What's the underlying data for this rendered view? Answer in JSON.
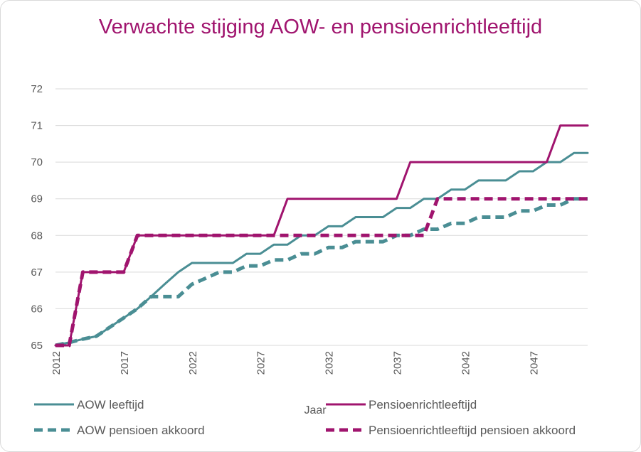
{
  "chart_data": {
    "type": "line",
    "title": "Verwachte stijging  AOW- en pensioenrichtleeftijd",
    "xlabel": "Jaar",
    "ylabel": "",
    "ylim": [
      65,
      72
    ],
    "yticks": [
      65,
      66,
      67,
      68,
      69,
      70,
      71,
      72
    ],
    "xlim": [
      2012,
      2051
    ],
    "xticks": [
      2012,
      2017,
      2022,
      2027,
      2032,
      2037,
      2042,
      2047
    ],
    "grid": true,
    "legend_position": "bottom",
    "series": [
      {
        "name": "AOW leeftijd",
        "color": "#4a8e94",
        "dash": "solid",
        "x": [
          2012,
          2013,
          2014,
          2015,
          2016,
          2017,
          2018,
          2019,
          2020,
          2021,
          2022,
          2023,
          2024,
          2025,
          2026,
          2027,
          2028,
          2029,
          2030,
          2031,
          2032,
          2033,
          2034,
          2035,
          2036,
          2037,
          2038,
          2039,
          2040,
          2041,
          2042,
          2043,
          2044,
          2045,
          2046,
          2047,
          2048,
          2049,
          2050,
          2051
        ],
        "values": [
          65,
          65.08,
          65.17,
          65.25,
          65.5,
          65.75,
          66,
          66.33,
          66.67,
          67,
          67.25,
          67.25,
          67.25,
          67.25,
          67.5,
          67.5,
          67.75,
          67.75,
          68,
          68,
          68.25,
          68.25,
          68.5,
          68.5,
          68.5,
          68.75,
          68.75,
          69,
          69,
          69.25,
          69.25,
          69.5,
          69.5,
          69.5,
          69.75,
          69.75,
          70,
          70,
          70.25,
          70.25
        ]
      },
      {
        "name": "Pensioenrichtleeftijd",
        "color": "#a0146e",
        "dash": "solid",
        "x": [
          2012,
          2013,
          2014,
          2015,
          2016,
          2017,
          2018,
          2019,
          2020,
          2021,
          2022,
          2023,
          2024,
          2025,
          2026,
          2027,
          2028,
          2029,
          2030,
          2031,
          2032,
          2033,
          2034,
          2035,
          2036,
          2037,
          2038,
          2039,
          2040,
          2041,
          2042,
          2043,
          2044,
          2045,
          2046,
          2047,
          2048,
          2049,
          2050,
          2051
        ],
        "values": [
          65,
          65,
          67,
          67,
          67,
          67,
          68,
          68,
          68,
          68,
          68,
          68,
          68,
          68,
          68,
          68,
          68,
          69,
          69,
          69,
          69,
          69,
          69,
          69,
          69,
          69,
          70,
          70,
          70,
          70,
          70,
          70,
          70,
          70,
          70,
          70,
          70,
          71,
          71,
          71
        ]
      },
      {
        "name": "AOW pensioen akkoord",
        "color": "#4a8e94",
        "dash": "dashed",
        "x": [
          2012,
          2013,
          2014,
          2015,
          2016,
          2017,
          2018,
          2019,
          2020,
          2021,
          2022,
          2023,
          2024,
          2025,
          2026,
          2027,
          2028,
          2029,
          2030,
          2031,
          2032,
          2033,
          2034,
          2035,
          2036,
          2037,
          2038,
          2039,
          2040,
          2041,
          2042,
          2043,
          2044,
          2045,
          2046,
          2047,
          2048,
          2049,
          2050,
          2051
        ],
        "values": [
          65,
          65.08,
          65.17,
          65.25,
          65.5,
          65.75,
          66,
          66.33,
          66.33,
          66.33,
          66.67,
          66.83,
          67,
          67,
          67.17,
          67.17,
          67.33,
          67.33,
          67.5,
          67.5,
          67.67,
          67.67,
          67.83,
          67.83,
          67.83,
          68,
          68,
          68.17,
          68.17,
          68.33,
          68.33,
          68.5,
          68.5,
          68.5,
          68.67,
          68.67,
          68.83,
          68.83,
          69,
          69
        ]
      },
      {
        "name": "Pensioenrichtleeftijd pensioen akkoord",
        "color": "#a0146e",
        "dash": "dashed",
        "x": [
          2012,
          2013,
          2014,
          2015,
          2016,
          2017,
          2018,
          2019,
          2020,
          2021,
          2022,
          2023,
          2024,
          2025,
          2026,
          2027,
          2028,
          2029,
          2030,
          2031,
          2032,
          2033,
          2034,
          2035,
          2036,
          2037,
          2038,
          2039,
          2040,
          2041,
          2042,
          2043,
          2044,
          2045,
          2046,
          2047,
          2048,
          2049,
          2050,
          2051
        ],
        "values": [
          65,
          65,
          67,
          67,
          67,
          67,
          68,
          68,
          68,
          68,
          68,
          68,
          68,
          68,
          68,
          68,
          68,
          68,
          68,
          68,
          68,
          68,
          68,
          68,
          68,
          68,
          68,
          68,
          69,
          69,
          69,
          69,
          69,
          69,
          69,
          69,
          69,
          69,
          69,
          69
        ]
      }
    ]
  }
}
